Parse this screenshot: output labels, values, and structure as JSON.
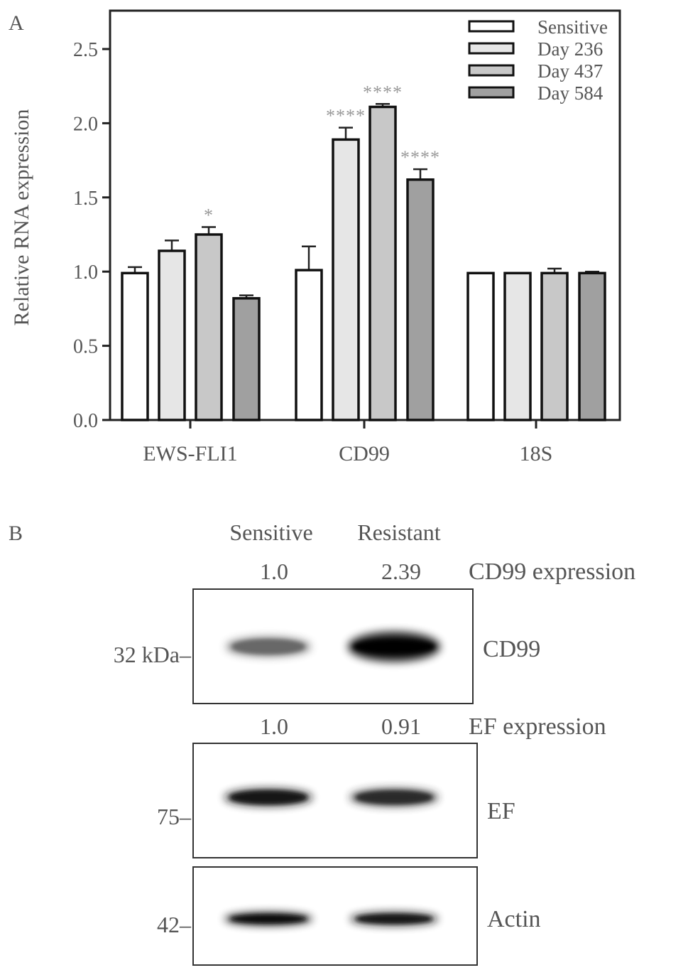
{
  "panel_a_label": "A",
  "panel_b_label": "B",
  "chart_data": {
    "type": "bar",
    "title": "",
    "xlabel": "",
    "ylabel": "Relative RNA expression",
    "ylim": [
      0,
      2.75
    ],
    "yticks": [
      "0.0",
      "0.5",
      "1.0",
      "1.5",
      "2.0",
      "2.5"
    ],
    "categories": [
      "EWS-FLI1",
      "CD99",
      "18S"
    ],
    "legend_position": "top-right",
    "series": [
      {
        "name": "Sensitive",
        "color": "#ffffff",
        "values": [
          0.99,
          1.01,
          0.99
        ],
        "errors": [
          0.04,
          0.16,
          0.0
        ],
        "annotations": [
          "",
          "",
          ""
        ]
      },
      {
        "name": "Day 236",
        "color": "#e6e6e6",
        "values": [
          1.14,
          1.89,
          0.99
        ],
        "errors": [
          0.07,
          0.08,
          0.0
        ],
        "annotations": [
          "",
          "****",
          ""
        ]
      },
      {
        "name": "Day 437",
        "color": "#c8c8c8",
        "values": [
          1.25,
          2.11,
          0.99
        ],
        "errors": [
          0.05,
          0.02,
          0.03
        ],
        "annotations": [
          "*",
          "****",
          ""
        ]
      },
      {
        "name": "Day 584",
        "color": "#a0a0a0",
        "values": [
          0.82,
          1.62,
          0.99
        ],
        "errors": [
          0.02,
          0.07,
          0.01
        ],
        "annotations": [
          "",
          "****",
          ""
        ]
      }
    ]
  },
  "blot": {
    "columns": [
      "Sensitive",
      "Resistant"
    ],
    "panels": [
      {
        "name": "CD99",
        "marker": "32 kDa–",
        "quant_label": "CD99 expression",
        "quant": [
          "1.0",
          "2.39"
        ],
        "intensity": [
          0.55,
          1.0
        ]
      },
      {
        "name": "EF",
        "marker": "75–",
        "quant_label": "EF expression",
        "quant": [
          "1.0",
          "0.91"
        ],
        "intensity": [
          0.9,
          0.82
        ]
      },
      {
        "name": "Actin",
        "marker": "42–",
        "quant_label": "",
        "quant": [],
        "intensity": [
          0.95,
          0.9
        ]
      }
    ]
  }
}
